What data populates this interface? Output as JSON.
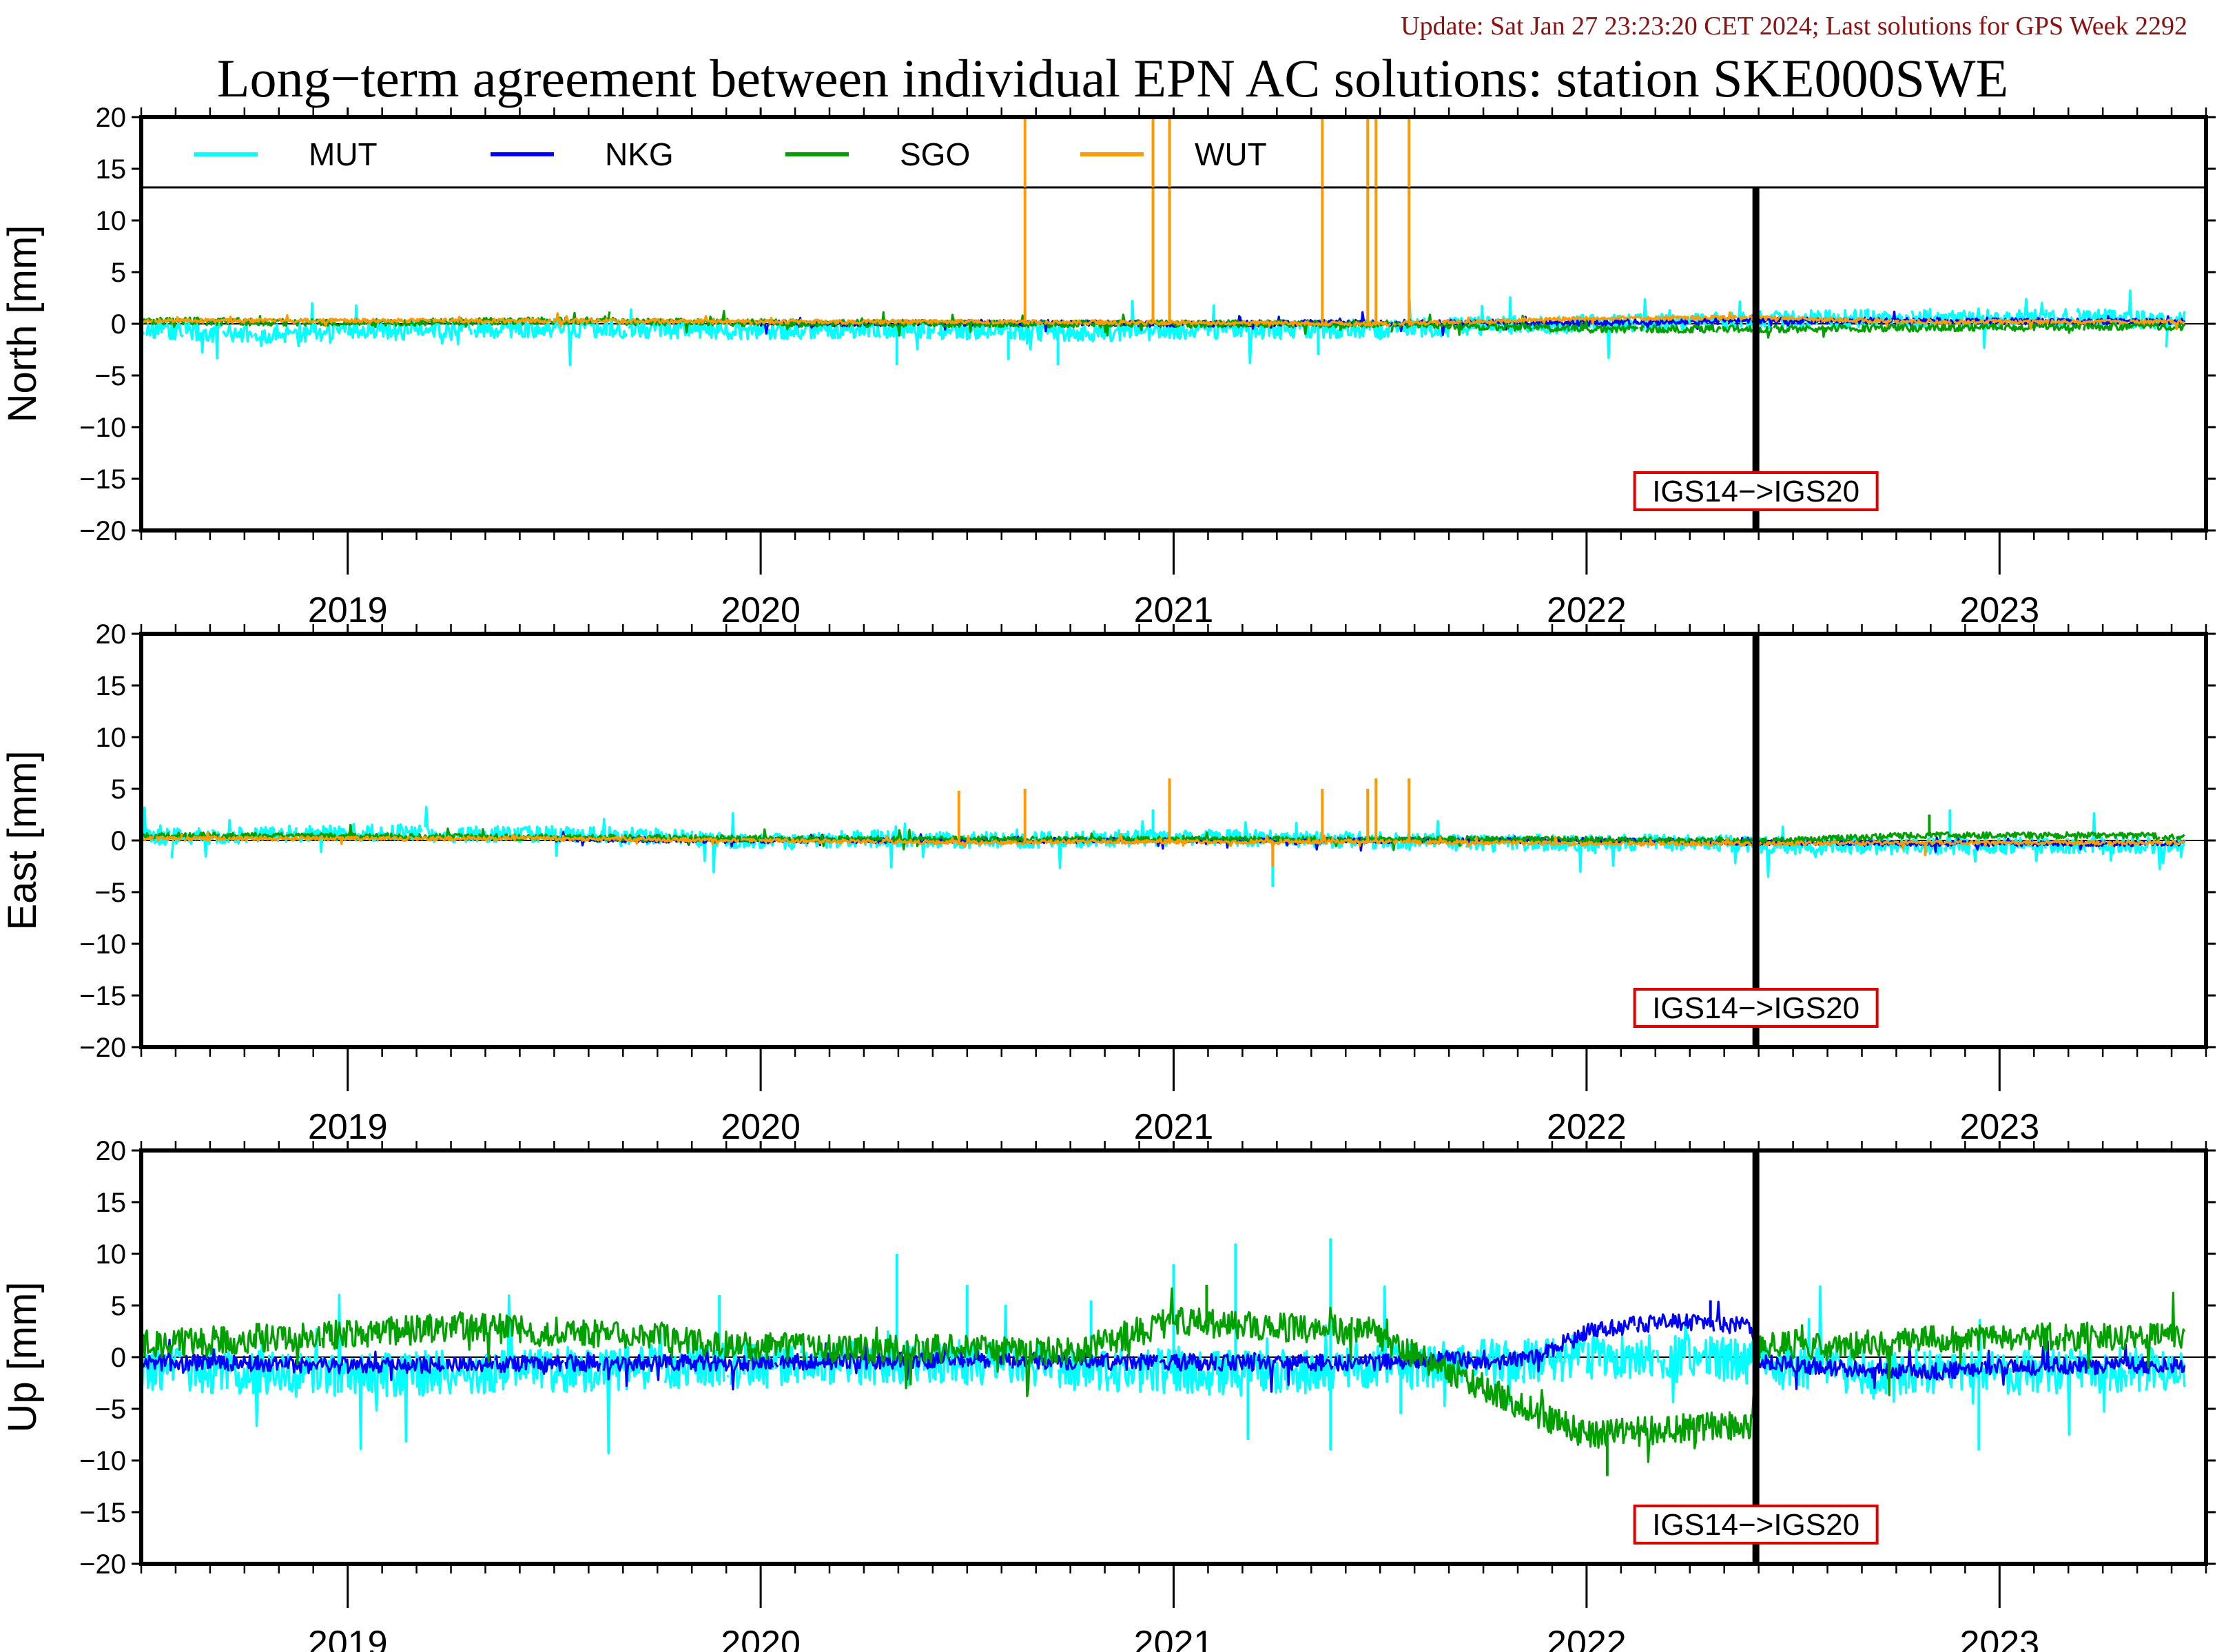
{
  "header": {
    "update": "Update: Sat Jan 27 23:23:20 CET 2024; Last solutions for GPS Week 2292",
    "title": "Long−term agreement between individual EPN AC solutions: station SKE000SWE"
  },
  "colors": {
    "MUT": "#00ffff",
    "NKG": "#0000ff",
    "SGO": "#00a000",
    "WUT": "#ff9a00",
    "frame_box": "#e00000",
    "update_text": "#8b1010"
  },
  "chart_data": [
    {
      "type": "line",
      "ylabel": "North [mm]",
      "ylim": [
        -20,
        20
      ],
      "yticks": [
        20,
        15,
        10,
        5,
        0,
        -5,
        -10,
        -15,
        -20
      ],
      "ytick_labels": [
        "20",
        "15",
        "10",
        "5",
        "0",
        "−5",
        "−10",
        "−15",
        "−20"
      ],
      "xlim": [
        2018.5,
        2023.5
      ],
      "x_labels": [
        "2019",
        "2020",
        "2021",
        "2022",
        "2023"
      ],
      "x_label_positions": [
        2019,
        2020,
        2021,
        2022,
        2023
      ],
      "legend": [
        "MUT",
        "NKG",
        "SGO",
        "WUT"
      ],
      "legend_placement": "top, inside a strip above the plot",
      "frame_change": {
        "x": 2022.41,
        "label": "IGS14−>IGS20"
      },
      "series": [
        {
          "name": "MUT",
          "x": [
            2018.5,
            2018.75,
            2019.0,
            2019.25,
            2019.5,
            2019.75,
            2020.0,
            2020.25,
            2020.5,
            2020.75,
            2021.0,
            2021.25,
            2021.5,
            2021.75,
            2022.0,
            2022.25,
            2022.5,
            2022.75,
            2023.0,
            2023.25,
            2023.45
          ],
          "y": [
            -0.5,
            -1.0,
            -0.7,
            -0.6,
            -0.4,
            -0.5,
            -0.6,
            -0.5,
            -0.6,
            -0.8,
            -0.7,
            -0.5,
            -0.5,
            -0.2,
            0.0,
            0.1,
            0.4,
            0.5,
            0.6,
            0.5,
            0.4
          ]
        },
        {
          "name": "NKG",
          "x": [
            2020.0,
            2020.5,
            2021.0,
            2021.5,
            2022.0,
            2022.4,
            2022.8,
            2023.2,
            2023.45
          ],
          "y": [
            0.0,
            0.1,
            0.0,
            0.1,
            0.1,
            0.3,
            0.3,
            0.2,
            0.2
          ]
        },
        {
          "name": "SGO",
          "x": [
            2018.5,
            2019.0,
            2019.5,
            2020.0,
            2020.5,
            2021.0,
            2021.5,
            2022.0,
            2022.4,
            2022.8,
            2023.2,
            2023.45
          ],
          "y": [
            0.3,
            0.1,
            0.3,
            0.1,
            0.0,
            0.0,
            0.0,
            -0.5,
            -0.5,
            -0.4,
            -0.3,
            -0.3
          ]
        },
        {
          "name": "WUT",
          "x": [
            2018.5,
            2019.0,
            2019.5,
            2020.0,
            2020.5,
            2021.0,
            2021.5,
            2021.6,
            2022.0,
            2022.4,
            2022.8,
            2023.2,
            2023.45
          ],
          "y": [
            0.3,
            0.3,
            0.3,
            0.2,
            0.2,
            0.1,
            0.0,
            0.1,
            0.5,
            0.6,
            0.2,
            0.2,
            0.2
          ]
        }
      ],
      "spikes": [
        {
          "series": "WUT",
          "x": 2020.64,
          "y": 20
        },
        {
          "series": "WUT",
          "x": 2020.95,
          "y": 20
        },
        {
          "series": "WUT",
          "x": 2020.99,
          "y": 20
        },
        {
          "series": "WUT",
          "x": 2021.36,
          "y": 20
        },
        {
          "series": "WUT",
          "x": 2021.47,
          "y": 20
        },
        {
          "series": "WUT",
          "x": 2021.49,
          "y": 20
        },
        {
          "series": "WUT",
          "x": 2021.57,
          "y": 20
        },
        {
          "series": "MUT",
          "x": 2020.33,
          "y": -4.0
        },
        {
          "series": "MUT",
          "x": 2020.6,
          "y": -3.5
        },
        {
          "series": "MUT",
          "x": 2020.72,
          "y": -4.0
        },
        {
          "series": "MUT",
          "x": 2020.99,
          "y": 3.5
        },
        {
          "series": "MUT",
          "x": 2021.35,
          "y": -3.0
        }
      ]
    },
    {
      "type": "line",
      "ylabel": "East [mm]",
      "ylim": [
        -20,
        20
      ],
      "yticks": [
        20,
        15,
        10,
        5,
        0,
        -5,
        -10,
        -15,
        -20
      ],
      "ytick_labels": [
        "20",
        "15",
        "10",
        "5",
        "0",
        "−5",
        "−10",
        "−15",
        "−20"
      ],
      "xlim": [
        2018.5,
        2023.5
      ],
      "x_labels": [
        "2019",
        "2020",
        "2021",
        "2022",
        "2023"
      ],
      "x_label_positions": [
        2019,
        2020,
        2021,
        2022,
        2023
      ],
      "frame_change": {
        "x": 2022.41,
        "label": "IGS14−>IGS20"
      },
      "series": [
        {
          "name": "MUT",
          "x": [
            2018.5,
            2018.75,
            2019.0,
            2019.25,
            2019.5,
            2019.75,
            2020.0,
            2020.25,
            2020.5,
            2020.75,
            2021.0,
            2021.25,
            2021.5,
            2021.75,
            2022.0,
            2022.25,
            2022.5,
            2022.75,
            2023.0,
            2023.25,
            2023.45
          ],
          "y": [
            0.3,
            0.5,
            0.8,
            0.6,
            0.6,
            0.4,
            -0.2,
            0.2,
            0.0,
            0.1,
            0.3,
            0.2,
            0.0,
            -0.3,
            -0.2,
            -0.2,
            -0.5,
            -0.6,
            -0.5,
            -0.5,
            -0.4
          ]
        },
        {
          "name": "NKG",
          "x": [
            2019.5,
            2020.0,
            2020.5,
            2021.0,
            2021.5,
            2022.0,
            2022.4,
            2022.8,
            2023.2,
            2023.45
          ],
          "y": [
            0.1,
            0.0,
            0.0,
            0.0,
            0.0,
            0.0,
            -0.2,
            -0.3,
            -0.3,
            -0.3
          ]
        },
        {
          "name": "SGO",
          "x": [
            2018.5,
            2019.0,
            2019.5,
            2020.0,
            2020.5,
            2021.0,
            2021.5,
            2022.0,
            2022.4,
            2022.8,
            2023.2,
            2023.45
          ],
          "y": [
            0.5,
            0.4,
            0.3,
            0.2,
            0.1,
            0.1,
            0.1,
            0.1,
            -0.1,
            0.5,
            0.5,
            0.4
          ]
        },
        {
          "name": "WUT",
          "x": [
            2018.5,
            2019.0,
            2019.5,
            2020.0,
            2020.5,
            2021.0,
            2021.5,
            2022.0,
            2022.4,
            2022.8,
            2023.2,
            2023.45
          ],
          "y": [
            0.2,
            0.2,
            0.2,
            0.0,
            -0.2,
            -0.1,
            -0.1,
            -0.3,
            -0.3,
            -0.2,
            -0.2,
            -0.2
          ]
        }
      ],
      "spikes": [
        {
          "series": "WUT",
          "x": 2020.48,
          "y": 4.8
        },
        {
          "series": "WUT",
          "x": 2020.64,
          "y": 5.0
        },
        {
          "series": "WUT",
          "x": 2020.99,
          "y": 6.0
        },
        {
          "series": "WUT",
          "x": 2021.36,
          "y": 5.0
        },
        {
          "series": "WUT",
          "x": 2021.47,
          "y": 5.0
        },
        {
          "series": "WUT",
          "x": 2021.49,
          "y": 6.0
        },
        {
          "series": "WUT",
          "x": 2021.57,
          "y": 6.0
        },
        {
          "series": "WUT",
          "x": 2021.24,
          "y": -2.5
        },
        {
          "series": "WUT",
          "x": 2022.82,
          "y": -1.5
        },
        {
          "series": "MUT",
          "x": 2021.24,
          "y": -4.5
        },
        {
          "series": "MUT",
          "x": 2020.95,
          "y": 3.0
        },
        {
          "series": "MUT",
          "x": 2022.88,
          "y": 3.0
        },
        {
          "series": "SGO",
          "x": 2022.83,
          "y": 2.5
        }
      ]
    },
    {
      "type": "line",
      "ylabel": "Up [mm]",
      "ylim": [
        -20,
        20
      ],
      "yticks": [
        20,
        15,
        10,
        5,
        0,
        -5,
        -10,
        -15,
        -20
      ],
      "ytick_labels": [
        "20",
        "15",
        "10",
        "5",
        "0",
        "−5",
        "−10",
        "−15",
        "−20"
      ],
      "xlim": [
        2018.5,
        2023.5
      ],
      "x_labels": [
        "2019",
        "2020",
        "2021",
        "2022",
        "2023"
      ],
      "x_label_positions": [
        2019,
        2020,
        2021,
        2022,
        2023
      ],
      "frame_change": {
        "x": 2022.41,
        "label": "IGS14−>IGS20"
      },
      "series": [
        {
          "name": "MUT",
          "x": [
            2018.5,
            2018.75,
            2019.0,
            2019.25,
            2019.5,
            2019.75,
            2020.0,
            2020.25,
            2020.5,
            2020.75,
            2021.0,
            2021.25,
            2021.5,
            2021.75,
            2022.0,
            2022.25,
            2022.5,
            2022.75,
            2023.0,
            2023.25,
            2023.45
          ],
          "y": [
            -1.0,
            -1.5,
            -1.8,
            -1.5,
            -1.2,
            -1.0,
            -0.8,
            -0.5,
            -0.5,
            -1.0,
            -1.5,
            -1.5,
            -1.0,
            -0.5,
            0.0,
            0.0,
            -1.0,
            -1.5,
            -1.5,
            -1.2,
            -1.0
          ]
        },
        {
          "name": "NKG",
          "x": [
            2018.5,
            2019.0,
            2019.5,
            2020.0,
            2020.5,
            2021.0,
            2021.5,
            2021.65,
            2021.8,
            2021.88,
            2022.0,
            2022.2,
            2022.4,
            2022.42,
            2022.6,
            2022.8,
            2023.0,
            2023.2,
            2023.45
          ],
          "y": [
            -0.5,
            -0.8,
            -0.6,
            -0.5,
            -0.3,
            -0.5,
            -0.5,
            -0.2,
            -0.5,
            0.0,
            2.5,
            3.5,
            3.0,
            -0.5,
            -1.0,
            -1.5,
            -1.0,
            -0.8,
            -0.8
          ]
        },
        {
          "name": "SGO",
          "x": [
            2018.5,
            2018.75,
            2019.0,
            2019.25,
            2019.5,
            2019.75,
            2020.0,
            2020.25,
            2020.5,
            2020.75,
            2021.0,
            2021.3,
            2021.47,
            2021.88,
            2022.0,
            2022.2,
            2022.4,
            2022.42,
            2022.6,
            2022.8,
            2023.0,
            2023.2,
            2023.45
          ],
          "y": [
            1.2,
            1.8,
            2.2,
            3.0,
            2.5,
            2.0,
            1.0,
            0.8,
            0.8,
            0.5,
            3.5,
            2.8,
            2.5,
            -5.5,
            -7.5,
            -7.0,
            -6.5,
            1.5,
            1.0,
            1.5,
            2.0,
            2.0,
            2.0
          ]
        },
        {
          "name": "WUT",
          "x": [],
          "y": []
        }
      ],
      "spikes": [
        {
          "series": "MUT",
          "x": 2019.9,
          "y": 6.0
        },
        {
          "series": "MUT",
          "x": 2020.33,
          "y": 10.0
        },
        {
          "series": "MUT",
          "x": 2020.5,
          "y": 7.0
        },
        {
          "series": "MUT",
          "x": 2020.8,
          "y": 5.5
        },
        {
          "series": "MUT",
          "x": 2021.0,
          "y": 9.0
        },
        {
          "series": "MUT",
          "x": 2021.15,
          "y": 11.0
        },
        {
          "series": "MUT",
          "x": 2021.38,
          "y": 11.5
        },
        {
          "series": "MUT",
          "x": 2021.38,
          "y": -9.0
        },
        {
          "series": "MUT",
          "x": 2021.18,
          "y": -8.0
        },
        {
          "series": "MUT",
          "x": 2022.95,
          "y": -9.0
        },
        {
          "series": "MUT",
          "x": 2021.55,
          "y": -5.5
        },
        {
          "series": "NKG",
          "x": 2022.3,
          "y": 5.5
        },
        {
          "series": "SGO",
          "x": 2022.05,
          "y": -11.5
        },
        {
          "series": "SGO",
          "x": 2021.08,
          "y": 7.0
        }
      ]
    }
  ]
}
